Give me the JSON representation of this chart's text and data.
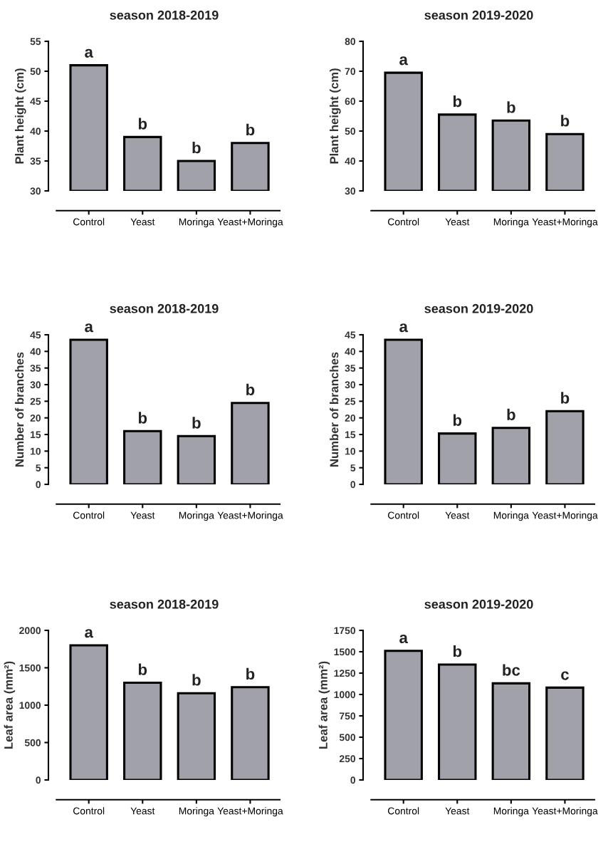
{
  "chart_data": [
    {
      "type": "bar",
      "title": "season 2018-2019",
      "ylabel": "Plant height (cm)",
      "categories": [
        "Control",
        "Yeast",
        "Moringa",
        "Yeast+Moringa"
      ],
      "values": [
        51,
        39,
        35,
        38
      ],
      "color": "#a0a1a9",
      "ylim": [
        30,
        55
      ],
      "yticks": [
        30,
        35,
        40,
        45,
        50,
        55
      ],
      "grid": false,
      "annotations": [
        {
          "text": "a",
          "x": "Control",
          "y": 51
        },
        {
          "text": "b",
          "x": "Yeast",
          "y": 39
        },
        {
          "text": "b",
          "x": "Moringa",
          "y": 35
        },
        {
          "text": "b",
          "x": "Yeast+Moringa",
          "y": 38
        }
      ]
    },
    {
      "type": "bar",
      "title": "season 2019-2020",
      "ylabel": "Plant height (cm)",
      "categories": [
        "Control",
        "Yeast",
        "Moringa",
        "Yeast+Moringa"
      ],
      "values": [
        69.5,
        55.5,
        53.5,
        49
      ],
      "color": "#a0a1a9",
      "ylim": [
        30,
        80
      ],
      "yticks": [
        30,
        40,
        50,
        60,
        70,
        80
      ],
      "grid": false,
      "annotations": [
        {
          "text": "a",
          "x": "Control",
          "y": 69.5
        },
        {
          "text": "b",
          "x": "Yeast",
          "y": 55.5
        },
        {
          "text": "b",
          "x": "Moringa",
          "y": 53.5
        },
        {
          "text": "b",
          "x": "Yeast+Moringa",
          "y": 49
        }
      ]
    },
    {
      "type": "bar",
      "title": "season 2018-2019",
      "ylabel": "Number of branches",
      "categories": [
        "Control",
        "Yeast",
        "Moringa",
        "Yeast+Moringa"
      ],
      "values": [
        43.5,
        16,
        14.5,
        24.5
      ],
      "color": "#a0a1a9",
      "ylim": [
        0,
        45
      ],
      "yticks": [
        0,
        5,
        10,
        15,
        20,
        25,
        30,
        35,
        40,
        45
      ],
      "grid": false,
      "annotations": [
        {
          "text": "a",
          "x": "Control",
          "y": 43.5
        },
        {
          "text": "b",
          "x": "Yeast",
          "y": 16
        },
        {
          "text": "b",
          "x": "Moringa",
          "y": 14.5
        },
        {
          "text": "b",
          "x": "Yeast+Moringa",
          "y": 24.5
        }
      ]
    },
    {
      "type": "bar",
      "title": "season 2019-2020",
      "ylabel": "Number of branches",
      "categories": [
        "Control",
        "Yeast",
        "Moringa",
        "Yeast+Moringa"
      ],
      "values": [
        43.5,
        15.3,
        17,
        22
      ],
      "color": "#a0a1a9",
      "ylim": [
        0,
        45
      ],
      "yticks": [
        0,
        5,
        10,
        15,
        20,
        25,
        30,
        35,
        40,
        45
      ],
      "grid": false,
      "annotations": [
        {
          "text": "a",
          "x": "Control",
          "y": 43.5
        },
        {
          "text": "b",
          "x": "Yeast",
          "y": 15.3
        },
        {
          "text": "b",
          "x": "Moringa",
          "y": 17
        },
        {
          "text": "b",
          "x": "Yeast+Moringa",
          "y": 22
        }
      ]
    },
    {
      "type": "bar",
      "title": "season 2018-2019",
      "ylabel": "Leaf area (mm²)",
      "categories": [
        "Control",
        "Yeast",
        "Moringa",
        "Yeast+Moringa"
      ],
      "values": [
        1800,
        1300,
        1160,
        1240
      ],
      "color": "#a0a1a9",
      "ylim": [
        0,
        2000
      ],
      "yticks": [
        0,
        500,
        1000,
        1500,
        2000
      ],
      "grid": false,
      "annotations": [
        {
          "text": "a",
          "x": "Control",
          "y": 1800
        },
        {
          "text": "b",
          "x": "Yeast",
          "y": 1300
        },
        {
          "text": "b",
          "x": "Moringa",
          "y": 1160
        },
        {
          "text": "b",
          "x": "Yeast+Moringa",
          "y": 1240
        }
      ]
    },
    {
      "type": "bar",
      "title": "season 2019-2020",
      "ylabel": "Leaf area (mm²)",
      "categories": [
        "Control",
        "Yeast",
        "Moringa",
        "Yeast+Moringa"
      ],
      "values": [
        1510,
        1350,
        1130,
        1080
      ],
      "color": "#a0a1a9",
      "ylim": [
        0,
        1750
      ],
      "yticks": [
        0,
        250,
        500,
        750,
        1000,
        1250,
        1500,
        1750
      ],
      "grid": false,
      "annotations": [
        {
          "text": "a",
          "x": "Control",
          "y": 1510
        },
        {
          "text": "b",
          "x": "Yeast",
          "y": 1350
        },
        {
          "text": "bc",
          "x": "Moringa",
          "y": 1130
        },
        {
          "text": "c",
          "x": "Yeast+Moringa",
          "y": 1080
        }
      ]
    }
  ]
}
